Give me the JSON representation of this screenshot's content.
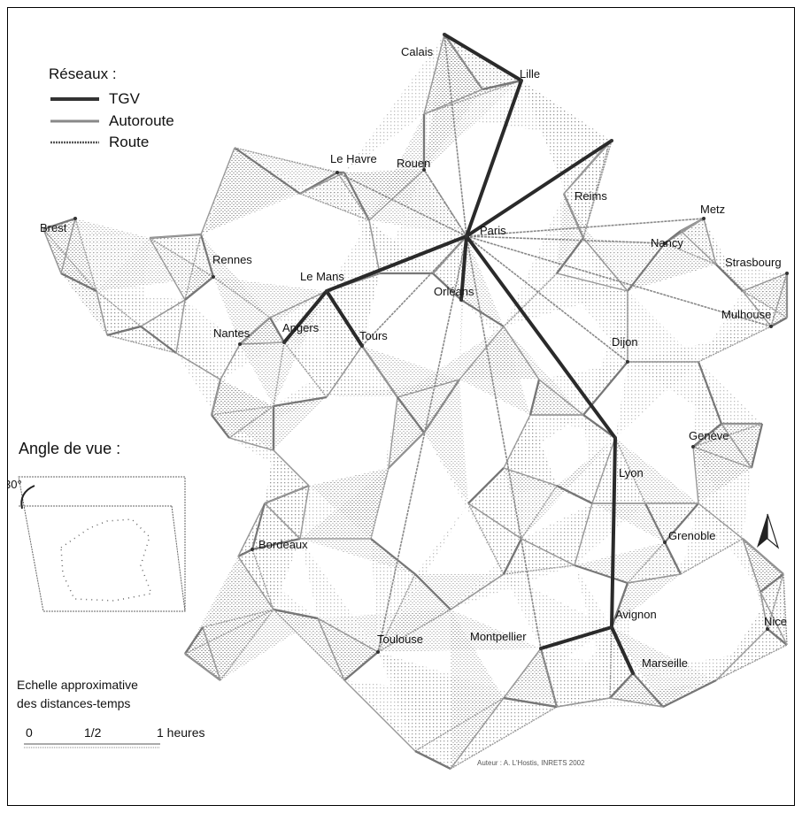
{
  "legend": {
    "title": "Réseaux :",
    "items": [
      {
        "label": "TGV",
        "color": "#333333"
      },
      {
        "label": "Autoroute",
        "color": "#888888"
      },
      {
        "label": "Route",
        "color": "#555555"
      }
    ]
  },
  "view_angle": {
    "title": "Angle de vue :",
    "angle_label": "30°"
  },
  "scale": {
    "title_line1": "Echelle approximative",
    "title_line2": "des distances-temps",
    "ticks": [
      "0",
      "1/2",
      "1 heures"
    ]
  },
  "credit": "Auteur : A. L'Hostis, INRETS 2002",
  "north_arrow": "north-arrow-icon",
  "cities": [
    {
      "name": "Calais"
    },
    {
      "name": "Lille"
    },
    {
      "name": "Le Havre"
    },
    {
      "name": "Rouen"
    },
    {
      "name": "Reims"
    },
    {
      "name": "Metz"
    },
    {
      "name": "Brest"
    },
    {
      "name": "Paris"
    },
    {
      "name": "Nancy"
    },
    {
      "name": "Rennes"
    },
    {
      "name": "Strasbourg"
    },
    {
      "name": "Le Mans"
    },
    {
      "name": "Orléans"
    },
    {
      "name": "Mulhouse"
    },
    {
      "name": "Nantes"
    },
    {
      "name": "Angers"
    },
    {
      "name": "Tours"
    },
    {
      "name": "Dijon"
    },
    {
      "name": "Genève"
    },
    {
      "name": "Lyon"
    },
    {
      "name": "Bordeaux"
    },
    {
      "name": "Grenoble"
    },
    {
      "name": "Avignon"
    },
    {
      "name": "Nice"
    },
    {
      "name": "Toulouse"
    },
    {
      "name": "Montpellier"
    },
    {
      "name": "Marseille"
    }
  ],
  "colors": {
    "tgv": "#333333",
    "autoroute": "#888888",
    "route": "#555555",
    "surface": "#9a9a9a"
  }
}
